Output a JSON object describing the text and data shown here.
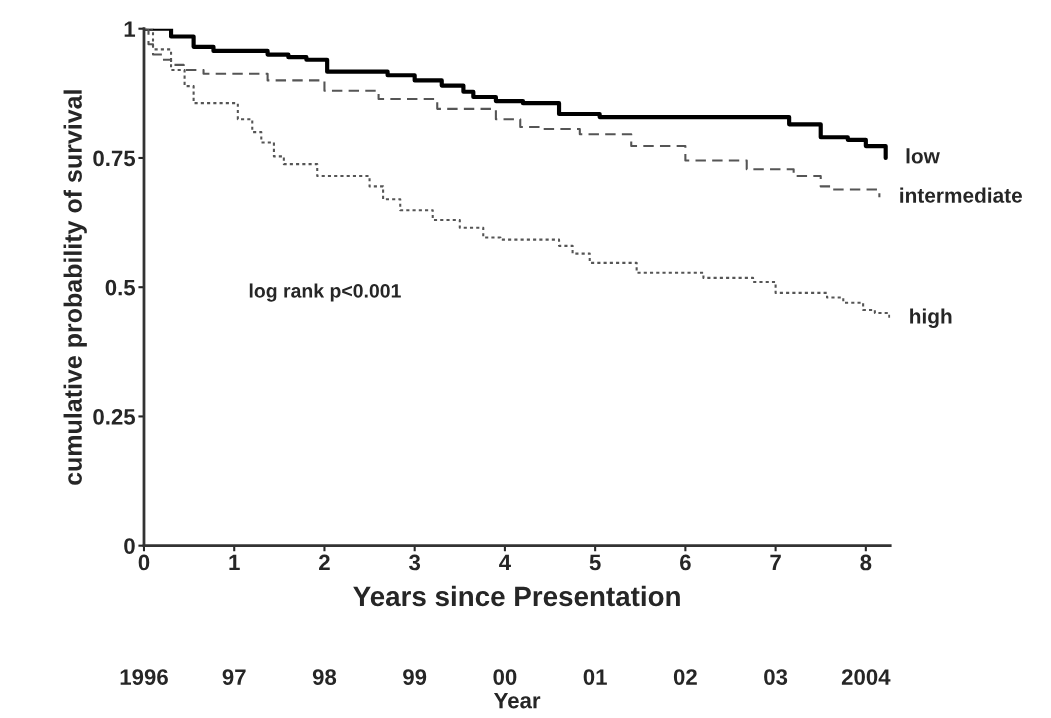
{
  "chart_data": {
    "type": "step",
    "xlabel": "Years since Presentation",
    "ylabel": "cumulative probability of survival",
    "x2label": "Year",
    "xlim": [
      0,
      8.27
    ],
    "xticks": [
      0,
      1,
      2,
      3,
      4,
      5,
      6,
      7,
      8
    ],
    "ylim": [
      0,
      1
    ],
    "yticks": [
      0,
      0.25,
      0.5,
      0.75,
      1
    ],
    "x2lim": [
      1996,
      2004.27
    ],
    "x2ticks": [
      1996,
      {
        "value": 1997,
        "label": "97"
      },
      {
        "value": 1998,
        "label": "98"
      },
      {
        "value": 1999,
        "label": "99"
      },
      {
        "value": 2000,
        "label": "00"
      },
      {
        "value": 2001,
        "label": "01"
      },
      {
        "value": 2002,
        "label": "02"
      },
      {
        "value": 2003,
        "label": "03"
      },
      2004
    ],
    "grid": false,
    "legend": false,
    "marker": "none",
    "annotations": [
      "log rank p<0.001"
    ],
    "series": [
      {
        "name": "low",
        "color": "#000000",
        "line_style": "solid",
        "x": [
          0,
          0.3,
          0.55,
          0.77,
          1.37,
          1.6,
          1.8,
          2.03,
          2.7,
          3.0,
          3.3,
          3.54,
          3.65,
          3.9,
          4.2,
          4.6,
          5.05,
          7.0,
          7.15,
          7.5,
          7.8,
          8.0,
          8.22
        ],
        "values": [
          1,
          0.985,
          0.965,
          0.957,
          0.95,
          0.945,
          0.94,
          0.917,
          0.91,
          0.9,
          0.89,
          0.878,
          0.868,
          0.86,
          0.856,
          0.835,
          0.829,
          0.829,
          0.815,
          0.79,
          0.785,
          0.773,
          0.75
        ]
      },
      {
        "name": "intermediate",
        "color": "#555555",
        "line_style": "dashed",
        "x": [
          0,
          0.05,
          0.1,
          0.2,
          0.3,
          0.44,
          0.66,
          1.37,
          2.0,
          2.6,
          3.25,
          3.9,
          4.17,
          4.4,
          4.83,
          5.4,
          6.0,
          6.68,
          7.2,
          7.5,
          7.63,
          8.15
        ],
        "values": [
          1,
          0.97,
          0.95,
          0.94,
          0.93,
          0.92,
          0.913,
          0.9,
          0.88,
          0.864,
          0.845,
          0.825,
          0.81,
          0.806,
          0.796,
          0.773,
          0.745,
          0.728,
          0.715,
          0.695,
          0.689,
          0.674
        ]
      },
      {
        "name": "high",
        "color": "#555555",
        "line_style": "dotted",
        "x": [
          0,
          0.1,
          0.3,
          0.45,
          0.55,
          1.04,
          1.2,
          1.3,
          1.44,
          1.55,
          1.92,
          2.5,
          2.65,
          2.84,
          3.2,
          3.5,
          3.76,
          3.95,
          4.6,
          4.75,
          4.94,
          5.46,
          6.2,
          6.75,
          7.0,
          7.57,
          7.75,
          7.97,
          8.1,
          8.26
        ],
        "values": [
          1,
          0.96,
          0.92,
          0.889,
          0.856,
          0.825,
          0.8,
          0.78,
          0.753,
          0.738,
          0.715,
          0.695,
          0.67,
          0.649,
          0.63,
          0.615,
          0.596,
          0.592,
          0.58,
          0.565,
          0.547,
          0.528,
          0.518,
          0.51,
          0.489,
          0.48,
          0.47,
          0.456,
          0.45,
          0.44
        ]
      }
    ]
  }
}
